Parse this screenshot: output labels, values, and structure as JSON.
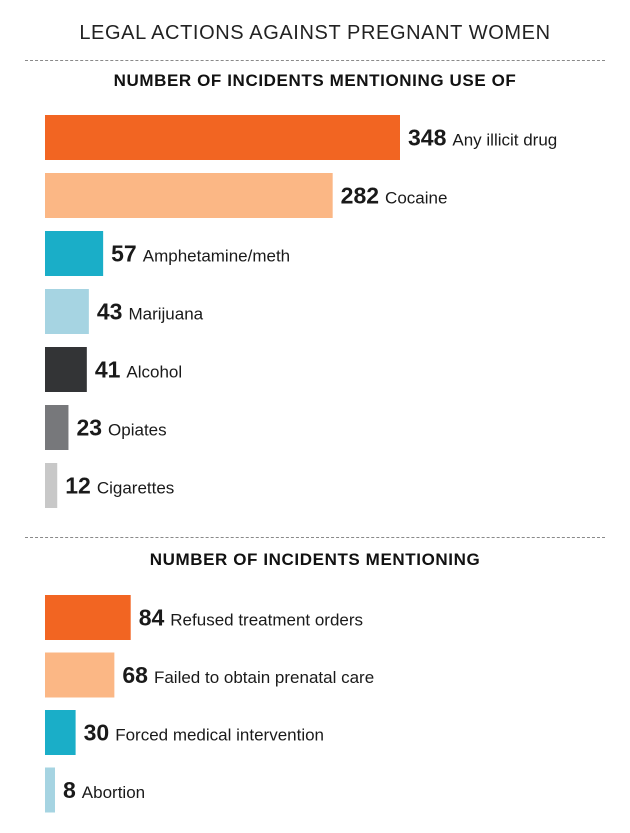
{
  "header": {
    "title": "LEGAL ACTIONS AGAINST PREGNANT WOMEN"
  },
  "chart_data": [
    {
      "type": "bar",
      "orientation": "horizontal",
      "title": "NUMBER OF INCIDENTS MENTIONING USE OF",
      "categories": [
        "Any illicit drug",
        "Cocaine",
        "Amphetamine/meth",
        "Marijuana",
        "Alcohol",
        "Opiates",
        "Cigarettes"
      ],
      "values": [
        348,
        282,
        57,
        43,
        41,
        23,
        12
      ],
      "colors": [
        "#f26522",
        "#fbb785",
        "#1aaec8",
        "#a6d4e2",
        "#333436",
        "#77787b",
        "#c8c8c8"
      ],
      "xlim": [
        0,
        348
      ],
      "grid": false,
      "legend": "none"
    },
    {
      "type": "bar",
      "orientation": "horizontal",
      "title": "NUMBER OF INCIDENTS MENTIONING",
      "categories": [
        "Refused treatment orders",
        "Failed to obtain prenatal care",
        "Forced medical intervention",
        "Abortion"
      ],
      "values": [
        84,
        68,
        30,
        8
      ],
      "colors": [
        "#f26522",
        "#fbb785",
        "#1aaec8",
        "#a6d4e2"
      ],
      "xlim": [
        0,
        348
      ],
      "grid": false,
      "legend": "none"
    }
  ]
}
